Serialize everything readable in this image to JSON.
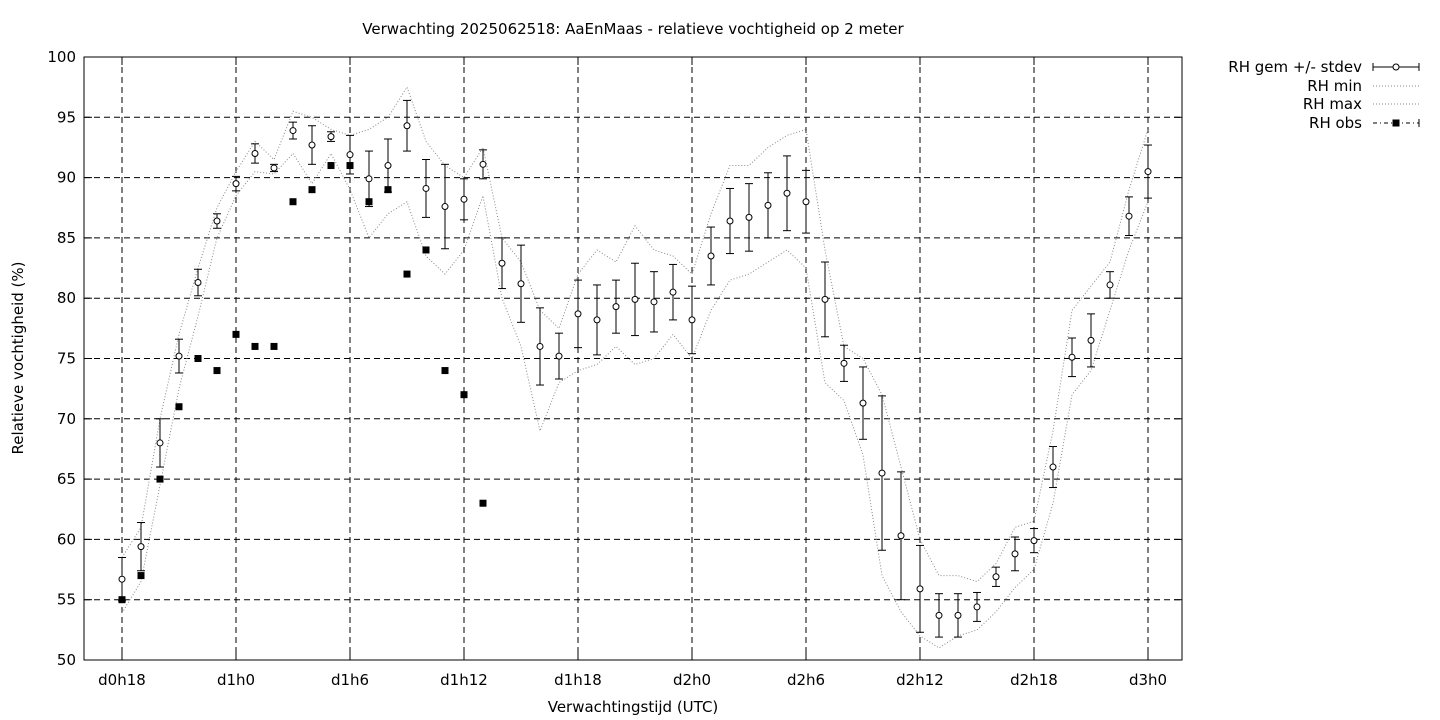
{
  "chart_data": {
    "type": "line",
    "title": "Verwachting 2025062518: AaEnMaas - relatieve vochtigheid op 2 meter",
    "xlabel": "Verwachtingstijd (UTC)",
    "ylabel": "Relatieve vochtigheid (%)",
    "ylim": [
      50,
      100
    ],
    "xlim": [
      -2,
      56
    ],
    "yticks": [
      50,
      55,
      60,
      65,
      70,
      75,
      80,
      85,
      90,
      95,
      100
    ],
    "xticks": [
      {
        "x": 0,
        "label": "d0h18"
      },
      {
        "x": 6,
        "label": "d1h0"
      },
      {
        "x": 12,
        "label": "d1h6"
      },
      {
        "x": 18,
        "label": "d1h12"
      },
      {
        "x": 24,
        "label": "d1h18"
      },
      {
        "x": 30,
        "label": "d2h0"
      },
      {
        "x": 36,
        "label": "d2h6"
      },
      {
        "x": 42,
        "label": "d2h12"
      },
      {
        "x": 48,
        "label": "d2h18"
      },
      {
        "x": 54,
        "label": "d3h0"
      }
    ],
    "grid": true,
    "legend_position": "outside-right",
    "series": [
      {
        "name": "RH gem +/- stdev",
        "kind": "errorbar",
        "x": [
          0,
          1,
          2,
          3,
          4,
          5,
          6,
          7,
          8,
          9,
          10,
          11,
          12,
          13,
          14,
          15,
          16,
          17,
          18,
          19,
          20,
          21,
          22,
          23,
          24,
          25,
          26,
          27,
          28,
          29,
          30,
          31,
          32,
          33,
          34,
          35,
          36,
          37,
          38,
          39,
          40,
          41,
          42,
          43,
          44,
          45,
          46,
          47,
          48,
          49,
          50,
          51,
          52,
          53,
          54
        ],
        "mean": [
          56.7,
          59.4,
          68.0,
          75.2,
          81.3,
          86.4,
          89.5,
          92.0,
          90.8,
          93.9,
          92.7,
          93.4,
          91.9,
          89.9,
          91.0,
          94.3,
          89.1,
          87.6,
          88.2,
          91.1,
          82.9,
          81.2,
          76.0,
          75.2,
          78.7,
          78.2,
          79.3,
          79.9,
          79.7,
          80.5,
          78.2,
          83.5,
          86.4,
          86.7,
          87.7,
          88.7,
          88.0,
          79.9,
          74.6,
          71.3,
          65.5,
          60.3,
          55.9,
          53.7,
          53.7,
          54.4,
          56.9,
          58.8,
          59.9,
          66.0,
          75.1,
          76.5,
          81.1,
          86.8,
          90.5
        ],
        "stdev": [
          1.8,
          2.0,
          2.0,
          1.4,
          1.1,
          0.6,
          0.6,
          0.8,
          0.3,
          0.7,
          1.6,
          0.4,
          1.6,
          2.3,
          2.2,
          2.1,
          2.4,
          3.5,
          1.7,
          1.2,
          2.1,
          3.2,
          3.2,
          1.9,
          2.8,
          2.9,
          2.2,
          3.0,
          2.5,
          2.3,
          2.8,
          2.4,
          2.7,
          2.8,
          2.7,
          3.1,
          2.6,
          3.1,
          1.5,
          3.0,
          6.4,
          5.3,
          3.6,
          1.8,
          1.8,
          1.2,
          0.8,
          1.4,
          1.0,
          1.7,
          1.6,
          2.2,
          1.1,
          1.6,
          2.2
        ]
      },
      {
        "name": "RH min",
        "kind": "line",
        "x": [
          0,
          1,
          2,
          3,
          4,
          5,
          6,
          7,
          8,
          9,
          10,
          11,
          12,
          13,
          14,
          15,
          16,
          17,
          18,
          19,
          20,
          21,
          22,
          23,
          24,
          25,
          26,
          27,
          28,
          29,
          30,
          31,
          32,
          33,
          34,
          35,
          36,
          37,
          38,
          39,
          40,
          41,
          42,
          43,
          44,
          45,
          46,
          47,
          48,
          49,
          50,
          51,
          52,
          53,
          54
        ],
        "values": [
          53.9,
          56.5,
          64.5,
          72.5,
          78.5,
          85.0,
          88.5,
          90.5,
          90.3,
          92.0,
          89.5,
          92.0,
          89.0,
          85.0,
          87.0,
          88.0,
          83.5,
          82.0,
          84.0,
          88.5,
          80.0,
          76.0,
          69.0,
          73.0,
          74.0,
          74.5,
          76.0,
          74.5,
          75.0,
          77.0,
          75.0,
          79.0,
          81.5,
          82.0,
          83.0,
          84.0,
          82.5,
          73.0,
          71.5,
          67.0,
          57.0,
          54.0,
          52.0,
          51.0,
          52.0,
          52.5,
          54.0,
          56.0,
          57.5,
          63.0,
          72.0,
          74.0,
          79.0,
          84.0,
          88.0
        ]
      },
      {
        "name": "RH max",
        "kind": "line",
        "x": [
          0,
          1,
          2,
          3,
          4,
          5,
          6,
          7,
          8,
          9,
          10,
          11,
          12,
          13,
          14,
          15,
          16,
          17,
          18,
          19,
          20,
          21,
          22,
          23,
          24,
          25,
          26,
          27,
          28,
          29,
          30,
          31,
          32,
          33,
          34,
          35,
          36,
          37,
          38,
          39,
          40,
          41,
          42,
          43,
          44,
          45,
          46,
          47,
          48,
          49,
          50,
          51,
          52,
          53,
          54
        ],
        "values": [
          58.5,
          61.0,
          70.0,
          77.0,
          82.5,
          87.5,
          90.5,
          93.0,
          91.5,
          95.5,
          95.0,
          94.0,
          93.5,
          94.0,
          95.0,
          97.5,
          93.0,
          91.0,
          90.0,
          92.5,
          85.0,
          83.0,
          79.0,
          77.5,
          82.0,
          84.0,
          83.0,
          86.0,
          84.0,
          83.5,
          82.0,
          87.0,
          91.0,
          91.0,
          92.5,
          93.5,
          94.0,
          84.0,
          76.0,
          75.0,
          72.0,
          66.0,
          60.0,
          57.0,
          57.0,
          56.5,
          58.0,
          61.0,
          61.5,
          69.0,
          79.0,
          81.0,
          83.0,
          89.0,
          94.0
        ]
      },
      {
        "name": "RH obs",
        "kind": "points",
        "x": [
          0,
          1,
          2,
          3,
          4,
          5,
          6,
          7,
          8,
          9,
          10,
          11,
          12,
          13,
          14,
          15,
          16,
          17,
          18,
          19
        ],
        "values": [
          55,
          57,
          65,
          71,
          75,
          74,
          77,
          76,
          76,
          88,
          89,
          91,
          91,
          88,
          89,
          82,
          84,
          74,
          72,
          63
        ]
      }
    ]
  }
}
